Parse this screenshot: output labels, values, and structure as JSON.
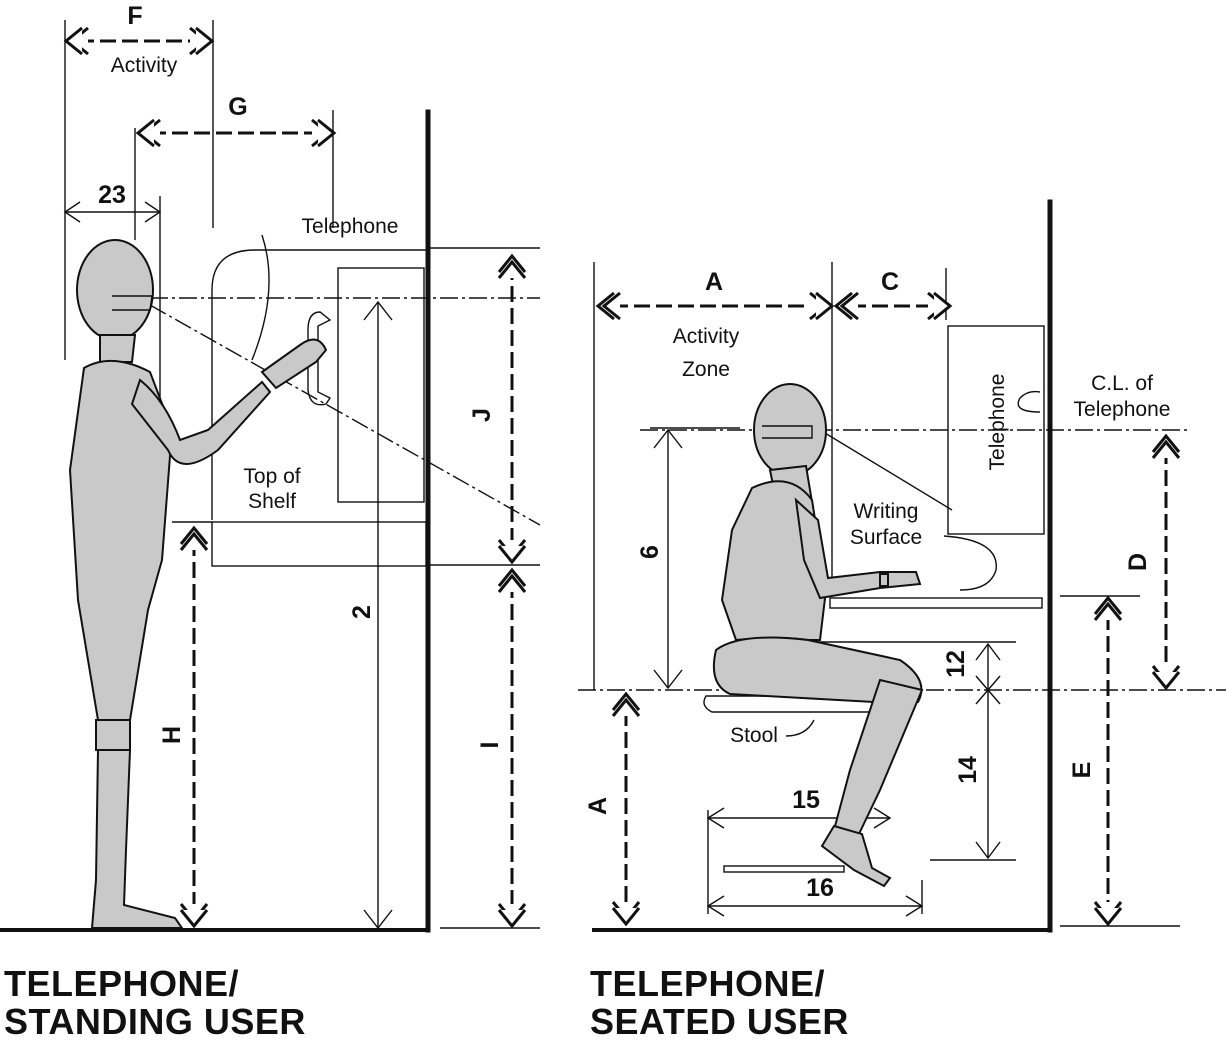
{
  "standing": {
    "caption_line1": "TELEPHONE/",
    "caption_line2": "STANDING USER",
    "labels": {
      "telephone": "Telephone",
      "top_of_shelf_1": "Top of",
      "top_of_shelf_2": "Shelf",
      "activity": "Activity"
    },
    "dims": {
      "F": "F",
      "G": "G",
      "d23": "23",
      "J": "J",
      "H": "H",
      "I": "I",
      "d2": "2"
    }
  },
  "seated": {
    "caption_line1": "TELEPHONE/",
    "caption_line2": "SEATED USER",
    "labels": {
      "activity_zone_1": "Activity",
      "activity_zone_2": "Zone",
      "telephone": "Telephone",
      "cl_1": "C.L. of",
      "cl_2": "Telephone",
      "writing_1": "Writing",
      "writing_2": "Surface",
      "stool": "Stool"
    },
    "dims": {
      "A_top": "A",
      "C": "C",
      "d6": "6",
      "D": "D",
      "d12": "12",
      "d14": "14",
      "E": "E",
      "A_left": "A",
      "d15": "15",
      "d16": "16"
    }
  }
}
